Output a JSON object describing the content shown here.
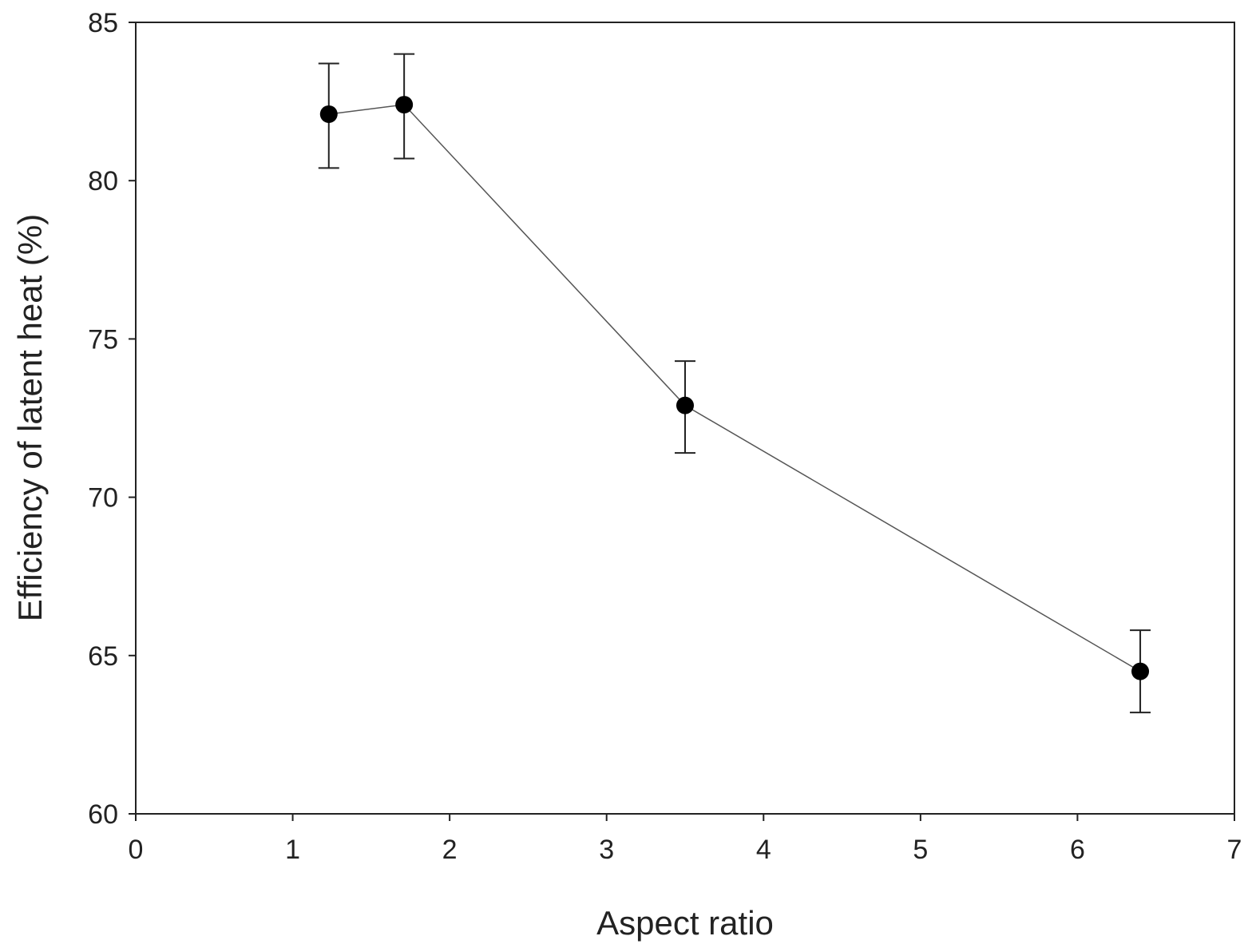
{
  "chart_data": {
    "type": "line",
    "title": "",
    "xlabel": "Aspect ratio",
    "ylabel": "Efficiency of latent heat (%)",
    "xlim": [
      0,
      7
    ],
    "ylim": [
      60,
      85
    ],
    "x_ticks": [
      "0",
      "1",
      "2",
      "3",
      "4",
      "5",
      "6",
      "7"
    ],
    "y_ticks": [
      "60",
      "65",
      "70",
      "75",
      "80",
      "85"
    ],
    "grid": false,
    "legend": "none",
    "series": [
      {
        "x": [
          1.23,
          1.71,
          3.5,
          6.4
        ],
        "y": [
          82.1,
          82.4,
          72.9,
          64.5
        ],
        "err_low": [
          80.4,
          80.7,
          71.4,
          63.2
        ],
        "err_high": [
          83.7,
          84.0,
          74.3,
          65.8
        ],
        "color": "#000000",
        "marker": "circle"
      }
    ]
  }
}
